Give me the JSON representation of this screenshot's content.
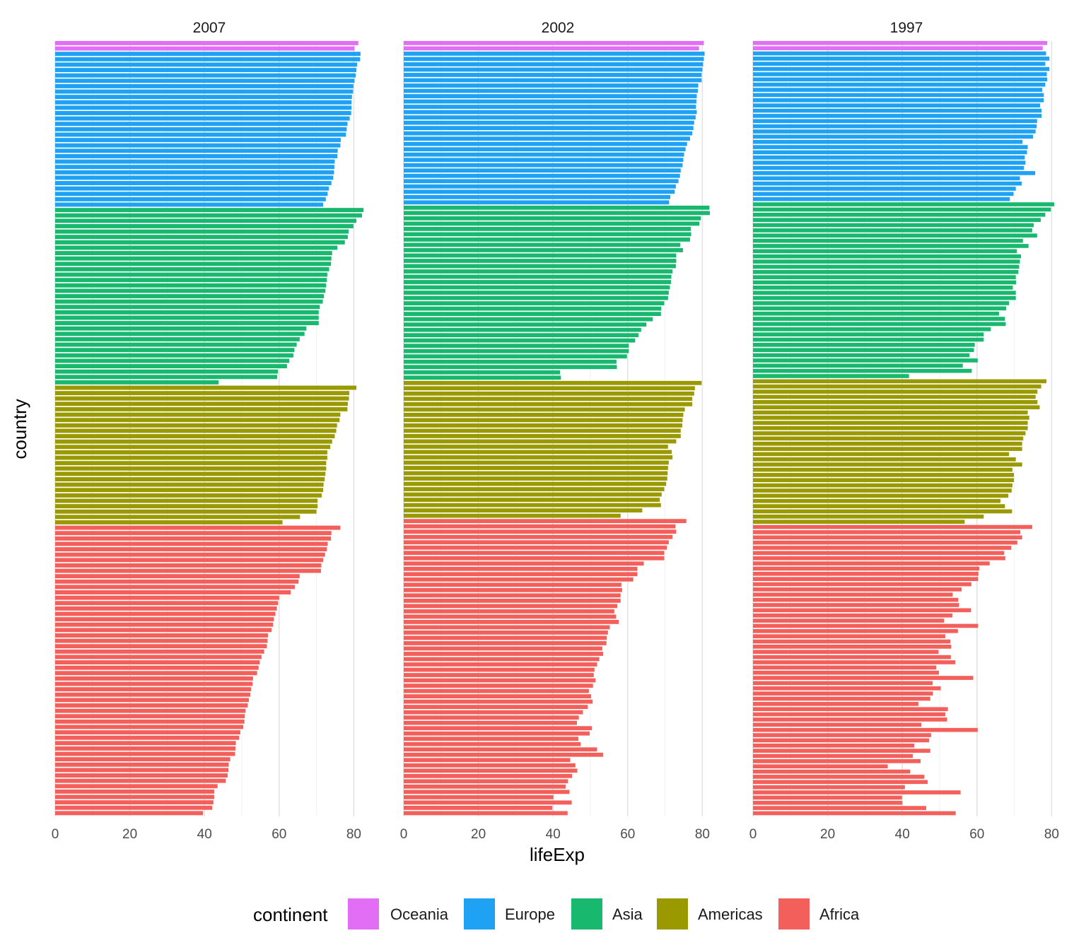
{
  "chart_data": {
    "type": "bar",
    "orientation": "horizontal",
    "facet_by": "year",
    "facets": [
      "2007",
      "2002",
      "1997"
    ],
    "xlabel": "lifeExp",
    "ylabel": "country",
    "xlim": [
      0,
      82
    ],
    "xticks": [
      "0",
      "20",
      "40",
      "60",
      "80"
    ],
    "y_tick_labels_shown": false,
    "grid": true,
    "legend": {
      "title": "continent",
      "position": "bottom",
      "entries": [
        "Oceania",
        "Europe",
        "Asia",
        "Americas",
        "Africa"
      ]
    },
    "colors": {
      "Oceania": "#E36EF6",
      "Europe": "#1FA2F3",
      "Asia": "#19B86F",
      "Americas": "#9A9900",
      "Africa": "#F35F5A"
    },
    "continent_order": [
      "Oceania",
      "Europe",
      "Asia",
      "Americas",
      "Africa"
    ],
    "series": [
      {
        "year": "2007",
        "values": {
          "Oceania": [
            81.2,
            80.2
          ],
          "Europe": [
            81.8,
            81.7,
            80.9,
            80.7,
            80.5,
            80.2,
            79.9,
            79.8,
            79.5,
            79.4,
            79.4,
            79.3,
            78.9,
            78.3,
            78.1,
            77.9,
            76.5,
            76.4,
            75.7,
            75.6,
            74.9,
            74.8,
            74.7,
            74.5,
            74.0,
            73.3,
            73.0,
            72.5,
            71.8
          ],
          "Asia": [
            82.6,
            82.2,
            80.7,
            79.9,
            78.6,
            78.4,
            77.6,
            75.6,
            74.2,
            74.0,
            73.9,
            73.4,
            72.9,
            72.8,
            72.6,
            72.4,
            72.0,
            71.7,
            70.9,
            70.6,
            70.6,
            70.6,
            67.3,
            66.8,
            65.5,
            64.7,
            64.1,
            63.8,
            62.7,
            62.1,
            59.7,
            59.5,
            43.8
          ],
          "Americas": [
            80.7,
            78.8,
            78.7,
            78.4,
            78.3,
            76.4,
            76.2,
            75.5,
            75.3,
            74.9,
            74.2,
            73.7,
            72.9,
            72.9,
            72.6,
            72.6,
            72.4,
            72.2,
            71.9,
            71.8,
            71.4,
            70.3,
            70.3,
            70.0,
            65.6,
            60.9
          ],
          "Africa": [
            76.4,
            74.0,
            73.9,
            73.0,
            72.8,
            72.3,
            71.8,
            71.3,
            71.2,
            65.5,
            65.2,
            64.2,
            63.1,
            60.0,
            59.7,
            59.4,
            59.0,
            58.6,
            58.4,
            58.0,
            57.0,
            56.9,
            56.7,
            56.0,
            55.3,
            54.8,
            54.5,
            54.1,
            53.0,
            52.9,
            52.5,
            52.3,
            51.9,
            51.6,
            51.0,
            50.8,
            50.7,
            50.4,
            49.6,
            49.3,
            48.4,
            48.3,
            48.2,
            46.9,
            46.5,
            46.4,
            46.2,
            45.7,
            43.5,
            42.6,
            42.6,
            42.4,
            42.1,
            39.6
          ]
        }
      },
      {
        "year": "2002",
        "values": {
          "Oceania": [
            80.4,
            79.1
          ],
          "Europe": [
            80.6,
            80.4,
            80.2,
            80.0,
            79.8,
            79.8,
            78.9,
            78.8,
            78.5,
            78.4,
            78.3,
            78.5,
            78.2,
            77.8,
            77.6,
            77.3,
            76.7,
            75.9,
            75.5,
            75.1,
            74.9,
            74.7,
            74.2,
            74.0,
            73.6,
            72.9,
            72.6,
            71.4,
            71.1
          ],
          "Asia": [
            81.9,
            82.0,
            79.6,
            79.2,
            76.9,
            77.0,
            76.7,
            74.1,
            74.8,
            73.0,
            73.0,
            72.9,
            72.0,
            71.7,
            71.6,
            71.3,
            71.0,
            70.8,
            69.8,
            69.0,
            68.9,
            66.7,
            65.0,
            63.6,
            62.9,
            62.0,
            60.3,
            60.3,
            59.8,
            57.0,
            57.1,
            41.9,
            42.1
          ],
          "Americas": [
            79.8,
            78.0,
            77.8,
            77.3,
            77.3,
            75.3,
            74.9,
            74.7,
            74.6,
            74.2,
            74.2,
            73.0,
            70.8,
            71.8,
            72.0,
            71.0,
            70.8,
            70.7,
            70.6,
            70.3,
            69.8,
            69.1,
            68.6,
            68.9,
            63.9,
            58.1
          ],
          "Africa": [
            75.7,
            72.8,
            73.0,
            72.0,
            71.0,
            70.5,
            69.8,
            69.8,
            64.3,
            62.6,
            62.6,
            61.5,
            58.3,
            58.5,
            58.1,
            58.1,
            57.2,
            56.4,
            56.9,
            57.6,
            55.2,
            54.7,
            54.4,
            54.3,
            53.2,
            53.4,
            52.4,
            51.8,
            51.1,
            50.9,
            51.4,
            50.7,
            49.6,
            50.2,
            50.6,
            49.3,
            48.0,
            46.9,
            46.4,
            50.4,
            49.8,
            46.8,
            47.4,
            51.8,
            53.4,
            44.6,
            46.0,
            46.5,
            45.1,
            44.0,
            43.4,
            44.4,
            40.1,
            45.0,
            39.8,
            43.9
          ]
        }
      },
      {
        "year": "1997",
        "values": {
          "Oceania": [
            78.8,
            77.6
          ],
          "Europe": [
            78.5,
            79.4,
            78.3,
            79.4,
            78.7,
            78.8,
            78.3,
            77.5,
            77.9,
            77.9,
            76.9,
            77.3,
            77.3,
            76.1,
            76.0,
            75.7,
            75.0,
            72.2,
            73.6,
            73.4,
            72.8,
            73.0,
            72.6,
            75.6,
            71.5,
            72.0,
            70.4,
            69.8,
            68.8
          ],
          "Asia": [
            80.7,
            79.8,
            78.3,
            77.1,
            75.2,
            74.8,
            76.1,
            72.3,
            73.8,
            70.7,
            71.8,
            71.5,
            71.3,
            71.1,
            70.4,
            70.5,
            69.6,
            70.4,
            70.4,
            68.6,
            67.8,
            65.9,
            67.5,
            67.7,
            63.7,
            61.8,
            61.8,
            59.4,
            59.2,
            58.0,
            60.2,
            56.2,
            58.6,
            41.8
          ],
          "Americas": [
            78.6,
            77.2,
            76.2,
            75.7,
            76.2,
            76.8,
            73.6,
            74.0,
            73.6,
            73.6,
            73.0,
            72.4,
            72.1,
            72.1,
            68.6,
            70.4,
            72.1,
            69.5,
            69.9,
            69.9,
            69.5,
            69.3,
            68.4,
            66.3,
            67.5,
            69.4,
            61.8,
            56.7
          ],
          "Africa": [
            74.8,
            71.6,
            72.1,
            70.8,
            69.2,
            67.3,
            67.6,
            63.4,
            60.6,
            60.4,
            60.3,
            58.5,
            55.9,
            53.5,
            55.0,
            55.2,
            58.4,
            53.4,
            51.2,
            60.3,
            54.9,
            51.5,
            52.9,
            53.1,
            49.7,
            53.0,
            54.2,
            49.1,
            49.8,
            59.0,
            48.1,
            50.3,
            48.2,
            47.5,
            44.3,
            52.2,
            51.5,
            52.0,
            45.1,
            60.2,
            47.7,
            47.2,
            43.2,
            47.5,
            42.8,
            44.9,
            36.1,
            42.1,
            45.9,
            46.8,
            40.7,
            55.6,
            39.9,
            40.0,
            46.4,
            54.3
          ]
        }
      }
    ]
  }
}
